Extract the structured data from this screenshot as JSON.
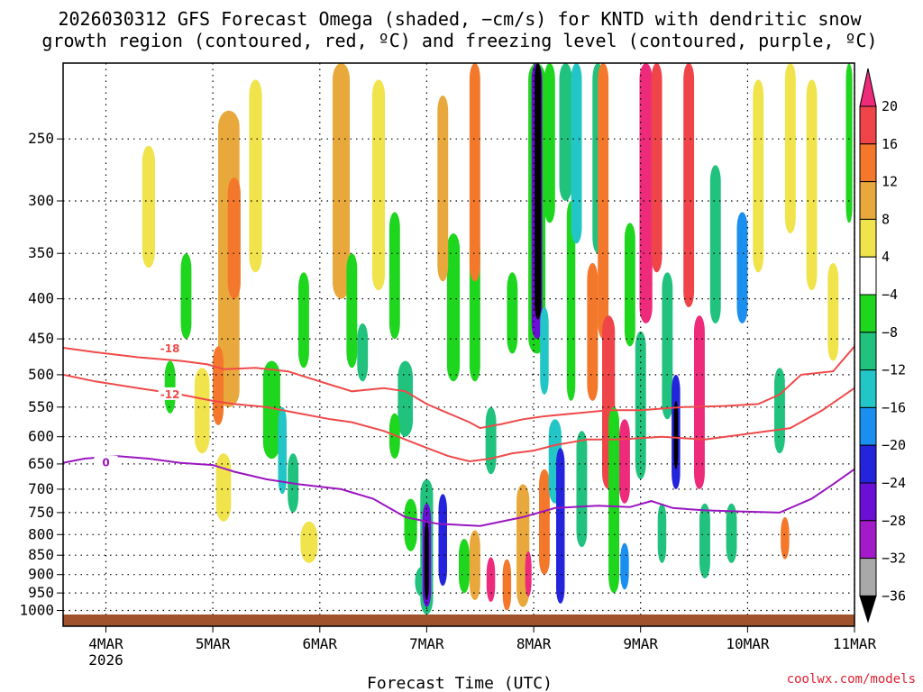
{
  "chart_data": {
    "type": "heatmap",
    "title_line1": "2026030312 GFS Forecast Omega (shaded, −cm/s) for KNTD with dendritic snow",
    "title_line2": "growth region (contoured, red, ºC) and freezing level (contoured, purple, ºC)",
    "xlabel": "Forecast Time (UTC)",
    "credit": "coolwx.com/models",
    "x_range_days": [
      3.6,
      11.0
    ],
    "x_ticks": [
      {
        "day": 4,
        "label": "4MAR",
        "sub": "2026"
      },
      {
        "day": 5,
        "label": "5MAR",
        "sub": ""
      },
      {
        "day": 6,
        "label": "6MAR",
        "sub": ""
      },
      {
        "day": 7,
        "label": "7MAR",
        "sub": ""
      },
      {
        "day": 8,
        "label": "8MAR",
        "sub": ""
      },
      {
        "day": 9,
        "label": "9MAR",
        "sub": ""
      },
      {
        "day": 10,
        "label": "10MAR",
        "sub": ""
      },
      {
        "day": 11,
        "label": "11MAR",
        "sub": ""
      }
    ],
    "y_label_text": [
      "250",
      "300",
      "350",
      "400",
      "450",
      "500",
      "550",
      "600",
      "650",
      "700",
      "750",
      "800",
      "850",
      "900",
      "950",
      "1000"
    ],
    "y_tick_values": [
      250,
      300,
      350,
      400,
      450,
      500,
      550,
      600,
      650,
      700,
      750,
      800,
      850,
      900,
      950,
      1000
    ],
    "y_range_hpa": [
      200,
      1012
    ],
    "colorbar": {
      "label_text": [
        "20",
        "16",
        "12",
        "8",
        "4",
        "−4",
        "−8",
        "−12",
        "−16",
        "−20",
        "−24",
        "−28",
        "−32",
        "−36"
      ],
      "label_values": [
        20,
        16,
        12,
        8,
        4,
        -4,
        -8,
        -12,
        -16,
        -20,
        -24,
        -28,
        -32,
        -36
      ],
      "bins": [
        {
          "min": 20,
          "max": 24,
          "color": "#ee2a7b"
        },
        {
          "min": 16,
          "max": 20,
          "color": "#ef4448"
        },
        {
          "min": 12,
          "max": 16,
          "color": "#f4782b"
        },
        {
          "min": 8,
          "max": 12,
          "color": "#e9a83c"
        },
        {
          "min": 4,
          "max": 8,
          "color": "#f0e34b"
        },
        {
          "min": -4,
          "max": 4,
          "color": "#ffffff"
        },
        {
          "min": -8,
          "max": -4,
          "color": "#1ed61e"
        },
        {
          "min": -12,
          "max": -8,
          "color": "#20c27d"
        },
        {
          "min": -16,
          "max": -12,
          "color": "#22c6c6"
        },
        {
          "min": -20,
          "max": -16,
          "color": "#1a8fef"
        },
        {
          "min": -24,
          "max": -20,
          "color": "#2424dc"
        },
        {
          "min": -28,
          "max": -24,
          "color": "#6a0fd6"
        },
        {
          "min": -32,
          "max": -28,
          "color": "#a31bc9"
        },
        {
          "min": -36,
          "max": -32,
          "color": "#a9a9a9"
        },
        {
          "min": -40,
          "max": -36,
          "color": "#000000"
        }
      ]
    },
    "omega_cells": [
      {
        "day": 4.4,
        "hpa": 310,
        "dd": 0.06,
        "dh": 55,
        "value": 6
      },
      {
        "day": 4.6,
        "hpa": 520,
        "dd": 0.05,
        "dh": 40,
        "value": -6
      },
      {
        "day": 4.75,
        "hpa": 400,
        "dd": 0.05,
        "dh": 50,
        "value": -6
      },
      {
        "day": 4.9,
        "hpa": 560,
        "dd": 0.07,
        "dh": 70,
        "value": 6
      },
      {
        "day": 5.15,
        "hpa": 390,
        "dd": 0.1,
        "dh": 160,
        "value": 10
      },
      {
        "day": 5.2,
        "hpa": 340,
        "dd": 0.06,
        "dh": 60,
        "value": 14
      },
      {
        "day": 5.05,
        "hpa": 520,
        "dd": 0.05,
        "dh": 60,
        "value": 14
      },
      {
        "day": 5.1,
        "hpa": 700,
        "dd": 0.07,
        "dh": 70,
        "value": 6
      },
      {
        "day": 5.4,
        "hpa": 290,
        "dd": 0.06,
        "dh": 80,
        "value": 6
      },
      {
        "day": 5.55,
        "hpa": 560,
        "dd": 0.08,
        "dh": 80,
        "value": -6
      },
      {
        "day": 5.65,
        "hpa": 630,
        "dd": 0.04,
        "dh": 80,
        "value": -16
      },
      {
        "day": 5.75,
        "hpa": 690,
        "dd": 0.05,
        "dh": 60,
        "value": -10
      },
      {
        "day": 5.85,
        "hpa": 430,
        "dd": 0.05,
        "dh": 60,
        "value": -6
      },
      {
        "day": 5.9,
        "hpa": 820,
        "dd": 0.08,
        "dh": 50,
        "value": 6
      },
      {
        "day": 6.2,
        "hpa": 290,
        "dd": 0.08,
        "dh": 110,
        "value": 8
      },
      {
        "day": 6.3,
        "hpa": 420,
        "dd": 0.05,
        "dh": 70,
        "value": -6
      },
      {
        "day": 6.4,
        "hpa": 470,
        "dd": 0.05,
        "dh": 40,
        "value": -10
      },
      {
        "day": 6.55,
        "hpa": 300,
        "dd": 0.06,
        "dh": 90,
        "value": 6
      },
      {
        "day": 6.7,
        "hpa": 380,
        "dd": 0.05,
        "dh": 70,
        "value": -6
      },
      {
        "day": 6.8,
        "hpa": 540,
        "dd": 0.07,
        "dh": 60,
        "value": -10
      },
      {
        "day": 6.7,
        "hpa": 600,
        "dd": 0.05,
        "dh": 40,
        "value": -6
      },
      {
        "day": 6.85,
        "hpa": 780,
        "dd": 0.06,
        "dh": 60,
        "value": -6
      },
      {
        "day": 6.95,
        "hpa": 920,
        "dd": 0.06,
        "dh": 40,
        "value": -10
      },
      {
        "day": 7.0,
        "hpa": 850,
        "dd": 0.06,
        "dh": 170,
        "value": -12
      },
      {
        "day": 7.0,
        "hpa": 860,
        "dd": 0.04,
        "dh": 130,
        "value": -26
      },
      {
        "day": 7.0,
        "hpa": 870,
        "dd": 0.02,
        "dh": 100,
        "value": -38
      },
      {
        "day": 7.15,
        "hpa": 820,
        "dd": 0.04,
        "dh": 110,
        "value": -22
      },
      {
        "day": 7.25,
        "hpa": 420,
        "dd": 0.06,
        "dh": 90,
        "value": -6
      },
      {
        "day": 7.15,
        "hpa": 300,
        "dd": 0.05,
        "dh": 80,
        "value": 8
      },
      {
        "day": 7.35,
        "hpa": 880,
        "dd": 0.05,
        "dh": 70,
        "value": -6
      },
      {
        "day": 7.45,
        "hpa": 880,
        "dd": 0.05,
        "dh": 90,
        "value": 10
      },
      {
        "day": 7.6,
        "hpa": 915,
        "dd": 0.04,
        "dh": 60,
        "value": 22
      },
      {
        "day": 7.45,
        "hpa": 420,
        "dd": 0.05,
        "dh": 90,
        "value": -6
      },
      {
        "day": 7.45,
        "hpa": 290,
        "dd": 0.05,
        "dh": 90,
        "value": 12
      },
      {
        "day": 7.6,
        "hpa": 610,
        "dd": 0.05,
        "dh": 60,
        "value": -12
      },
      {
        "day": 7.75,
        "hpa": 930,
        "dd": 0.04,
        "dh": 70,
        "value": 14
      },
      {
        "day": 7.8,
        "hpa": 420,
        "dd": 0.05,
        "dh": 50,
        "value": -6
      },
      {
        "day": 7.9,
        "hpa": 840,
        "dd": 0.06,
        "dh": 150,
        "value": 10
      },
      {
        "day": 7.95,
        "hpa": 900,
        "dd": 0.03,
        "dh": 60,
        "value": 22
      },
      {
        "day": 8.03,
        "hpa": 280,
        "dd": 0.08,
        "dh": 190,
        "value": -8
      },
      {
        "day": 8.03,
        "hpa": 280,
        "dd": 0.05,
        "dh": 170,
        "value": -26
      },
      {
        "day": 8.04,
        "hpa": 295,
        "dd": 0.03,
        "dh": 130,
        "value": -38
      },
      {
        "day": 8.1,
        "hpa": 470,
        "dd": 0.04,
        "dh": 60,
        "value": -14
      },
      {
        "day": 8.1,
        "hpa": 780,
        "dd": 0.05,
        "dh": 120,
        "value": 14
      },
      {
        "day": 8.2,
        "hpa": 650,
        "dd": 0.06,
        "dh": 80,
        "value": -14
      },
      {
        "day": 8.25,
        "hpa": 800,
        "dd": 0.04,
        "dh": 180,
        "value": -22
      },
      {
        "day": 8.15,
        "hpa": 200,
        "dd": 0.05,
        "dh": 120,
        "value": -6
      },
      {
        "day": 8.3,
        "hpa": 200,
        "dd": 0.06,
        "dh": 100,
        "value": -10
      },
      {
        "day": 8.35,
        "hpa": 420,
        "dd": 0.04,
        "dh": 120,
        "value": -6
      },
      {
        "day": 8.4,
        "hpa": 260,
        "dd": 0.05,
        "dh": 80,
        "value": -14
      },
      {
        "day": 8.45,
        "hpa": 710,
        "dd": 0.05,
        "dh": 120,
        "value": -10
      },
      {
        "day": 8.55,
        "hpa": 450,
        "dd": 0.05,
        "dh": 90,
        "value": 14
      },
      {
        "day": 8.6,
        "hpa": 250,
        "dd": 0.05,
        "dh": 100,
        "value": -12
      },
      {
        "day": 8.65,
        "hpa": 320,
        "dd": 0.05,
        "dh": 130,
        "value": 14
      },
      {
        "day": 8.7,
        "hpa": 560,
        "dd": 0.06,
        "dh": 140,
        "value": 18
      },
      {
        "day": 8.75,
        "hpa": 750,
        "dd": 0.05,
        "dh": 200,
        "value": -8
      },
      {
        "day": 8.85,
        "hpa": 650,
        "dd": 0.05,
        "dh": 80,
        "value": 22
      },
      {
        "day": 8.85,
        "hpa": 880,
        "dd": 0.04,
        "dh": 60,
        "value": -18
      },
      {
        "day": 8.9,
        "hpa": 390,
        "dd": 0.05,
        "dh": 70,
        "value": -6
      },
      {
        "day": 9.0,
        "hpa": 560,
        "dd": 0.05,
        "dh": 120,
        "value": -10
      },
      {
        "day": 9.05,
        "hpa": 310,
        "dd": 0.06,
        "dh": 120,
        "value": 22
      },
      {
        "day": 9.15,
        "hpa": 280,
        "dd": 0.05,
        "dh": 90,
        "value": 16
      },
      {
        "day": 9.25,
        "hpa": 470,
        "dd": 0.05,
        "dh": 100,
        "value": -10
      },
      {
        "day": 9.33,
        "hpa": 600,
        "dd": 0.04,
        "dh": 100,
        "value": -22
      },
      {
        "day": 9.33,
        "hpa": 600,
        "dd": 0.02,
        "dh": 60,
        "value": -38
      },
      {
        "day": 9.2,
        "hpa": 800,
        "dd": 0.04,
        "dh": 70,
        "value": -10
      },
      {
        "day": 9.45,
        "hpa": 300,
        "dd": 0.05,
        "dh": 110,
        "value": 18
      },
      {
        "day": 9.55,
        "hpa": 560,
        "dd": 0.05,
        "dh": 140,
        "value": 22
      },
      {
        "day": 9.6,
        "hpa": 820,
        "dd": 0.05,
        "dh": 90,
        "value": -10
      },
      {
        "day": 9.7,
        "hpa": 350,
        "dd": 0.05,
        "dh": 80,
        "value": -10
      },
      {
        "day": 9.85,
        "hpa": 800,
        "dd": 0.05,
        "dh": 70,
        "value": -12
      },
      {
        "day": 9.95,
        "hpa": 370,
        "dd": 0.05,
        "dh": 60,
        "value": -18
      },
      {
        "day": 10.1,
        "hpa": 290,
        "dd": 0.05,
        "dh": 80,
        "value": 6
      },
      {
        "day": 10.3,
        "hpa": 560,
        "dd": 0.05,
        "dh": 70,
        "value": -10
      },
      {
        "day": 10.35,
        "hpa": 810,
        "dd": 0.04,
        "dh": 50,
        "value": 12
      },
      {
        "day": 10.4,
        "hpa": 250,
        "dd": 0.05,
        "dh": 80,
        "value": 6
      },
      {
        "day": 10.6,
        "hpa": 300,
        "dd": 0.05,
        "dh": 90,
        "value": 6
      },
      {
        "day": 10.8,
        "hpa": 420,
        "dd": 0.05,
        "dh": 60,
        "value": 6
      },
      {
        "day": 10.95,
        "hpa": 240,
        "dd": 0.03,
        "dh": 80,
        "value": -6
      }
    ],
    "contours": [
      {
        "label": "-18",
        "color": "#ef4a4a",
        "label_day": 4.6,
        "label_hpa": 463,
        "points": [
          [
            3.6,
            462
          ],
          [
            3.9,
            468
          ],
          [
            4.3,
            475
          ],
          [
            4.7,
            480
          ],
          [
            4.95,
            485
          ],
          [
            5.1,
            492
          ],
          [
            5.4,
            490
          ],
          [
            5.7,
            495
          ],
          [
            5.9,
            505
          ],
          [
            6.1,
            515
          ],
          [
            6.3,
            525
          ],
          [
            6.6,
            520
          ],
          [
            6.8,
            525
          ],
          [
            7.0,
            545
          ],
          [
            7.2,
            560
          ],
          [
            7.4,
            575
          ],
          [
            7.5,
            585
          ],
          [
            7.7,
            578
          ],
          [
            7.9,
            570
          ],
          [
            8.1,
            565
          ],
          [
            8.4,
            560
          ],
          [
            8.7,
            555
          ],
          [
            9.0,
            555
          ],
          [
            9.4,
            550
          ],
          [
            9.8,
            548
          ],
          [
            10.1,
            545
          ],
          [
            10.3,
            530
          ],
          [
            10.5,
            500
          ],
          [
            10.8,
            495
          ],
          [
            11.0,
            460
          ]
        ]
      },
      {
        "label": "-12",
        "color": "#ef4a4a",
        "label_day": 4.6,
        "label_hpa": 530,
        "points": [
          [
            3.6,
            500
          ],
          [
            3.9,
            510
          ],
          [
            4.3,
            520
          ],
          [
            4.7,
            530
          ],
          [
            5.0,
            540
          ],
          [
            5.2,
            545
          ],
          [
            5.5,
            550
          ],
          [
            5.8,
            560
          ],
          [
            6.1,
            570
          ],
          [
            6.3,
            575
          ],
          [
            6.6,
            590
          ],
          [
            6.8,
            605
          ],
          [
            7.0,
            620
          ],
          [
            7.2,
            635
          ],
          [
            7.4,
            645
          ],
          [
            7.6,
            640
          ],
          [
            7.8,
            630
          ],
          [
            8.0,
            625
          ],
          [
            8.2,
            615
          ],
          [
            8.5,
            605
          ],
          [
            8.8,
            605
          ],
          [
            9.2,
            600
          ],
          [
            9.6,
            605
          ],
          [
            10.0,
            595
          ],
          [
            10.4,
            585
          ],
          [
            10.7,
            555
          ],
          [
            11.0,
            520
          ]
        ]
      },
      {
        "label": "0",
        "color": "#9a15c0",
        "label_day": 4.0,
        "label_hpa": 648,
        "points": [
          [
            3.6,
            648
          ],
          [
            3.8,
            640
          ],
          [
            4.1,
            635
          ],
          [
            4.4,
            640
          ],
          [
            4.7,
            648
          ],
          [
            5.0,
            652
          ],
          [
            5.2,
            665
          ],
          [
            5.5,
            680
          ],
          [
            5.8,
            690
          ],
          [
            6.2,
            700
          ],
          [
            6.5,
            720
          ],
          [
            6.8,
            760
          ],
          [
            7.1,
            775
          ],
          [
            7.5,
            780
          ],
          [
            7.9,
            760
          ],
          [
            8.2,
            740
          ],
          [
            8.6,
            735
          ],
          [
            8.9,
            738
          ],
          [
            9.1,
            725
          ],
          [
            9.3,
            740
          ],
          [
            9.6,
            745
          ],
          [
            10.0,
            748
          ],
          [
            10.3,
            750
          ],
          [
            10.6,
            720
          ],
          [
            10.8,
            690
          ],
          [
            11.0,
            660
          ]
        ]
      }
    ]
  }
}
